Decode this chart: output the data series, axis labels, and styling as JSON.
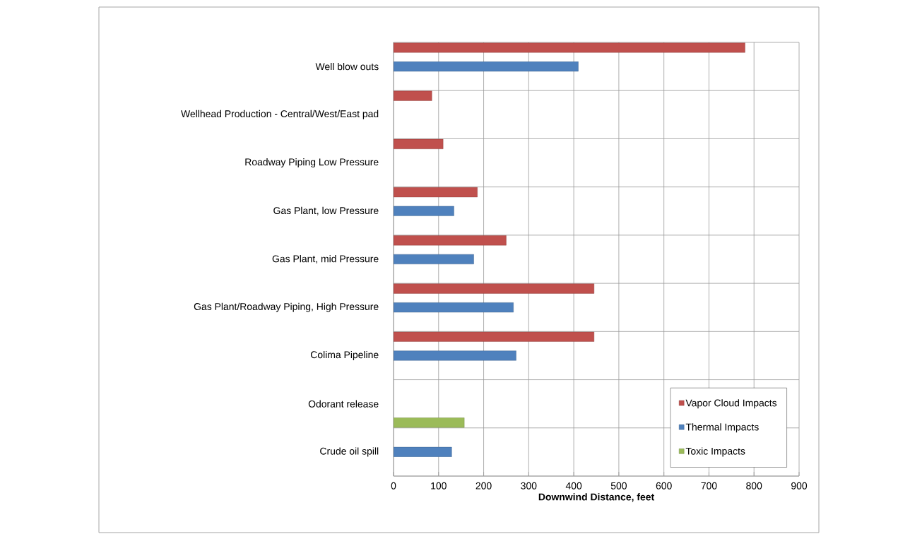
{
  "chart_data": {
    "type": "bar",
    "orientation": "horizontal",
    "xlabel": "Downwind Distance, feet",
    "categories": [
      "Well blow outs",
      "Wellhead Production - Central/West/East pad",
      "Roadway Piping Low Pressure",
      "Gas Plant, low Pressure",
      "Gas Plant, mid Pressure",
      "Gas Plant/Roadway Piping, High Pressure",
      "Colima Pipeline",
      "Odorant release",
      "Crude oil spill"
    ],
    "series": [
      {
        "name": "Vapor Cloud Impacts",
        "color": "#c0504d",
        "values": [
          780,
          85,
          110,
          186,
          250,
          445,
          445,
          null,
          null
        ]
      },
      {
        "name": "Thermal Impacts",
        "color": "#4f81bd",
        "values": [
          410,
          null,
          null,
          134,
          178,
          266,
          272,
          null,
          129
        ]
      },
      {
        "name": "Toxic Impacts",
        "color": "#9bbb59",
        "values": [
          null,
          null,
          null,
          null,
          null,
          null,
          null,
          157,
          null
        ]
      }
    ],
    "xlim": [
      0,
      900
    ],
    "xticks": [
      0,
      100,
      200,
      300,
      400,
      500,
      600,
      700,
      800,
      900
    ],
    "grid": true,
    "legend": "bottom right"
  }
}
